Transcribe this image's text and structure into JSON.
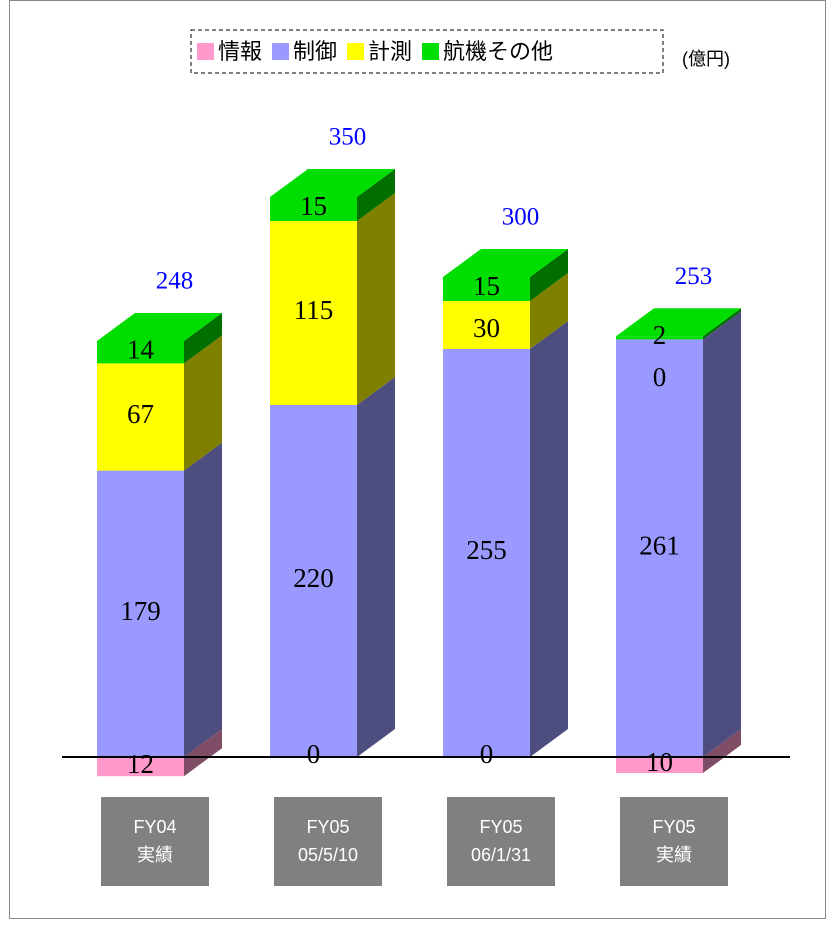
{
  "chart_data": {
    "type": "bar3d_stacked",
    "unit_label": "(億円)",
    "categories": [
      [
        "FY04",
        "実績"
      ],
      [
        "FY05",
        "05/5/10"
      ],
      [
        "FY05",
        "06/1/31"
      ],
      [
        "FY05",
        "実績"
      ]
    ],
    "series": [
      {
        "name": "情報",
        "color": "#ff99cc",
        "values": [
          -12,
          0,
          0,
          -10
        ],
        "value_labels": [
          "12",
          "0",
          "0",
          "10"
        ]
      },
      {
        "name": "制御",
        "color": "#9999ff",
        "values": [
          179,
          220,
          255,
          261
        ]
      },
      {
        "name": "計測",
        "color": "#ffff00",
        "values": [
          67,
          115,
          30,
          0
        ]
      },
      {
        "name": "航機その他",
        "color": "#00dd00",
        "values": [
          14,
          15,
          15,
          2
        ]
      }
    ],
    "totals": [
      248,
      350,
      300,
      253
    ],
    "ylim": [
      -20,
      400
    ],
    "legend": "top"
  }
}
